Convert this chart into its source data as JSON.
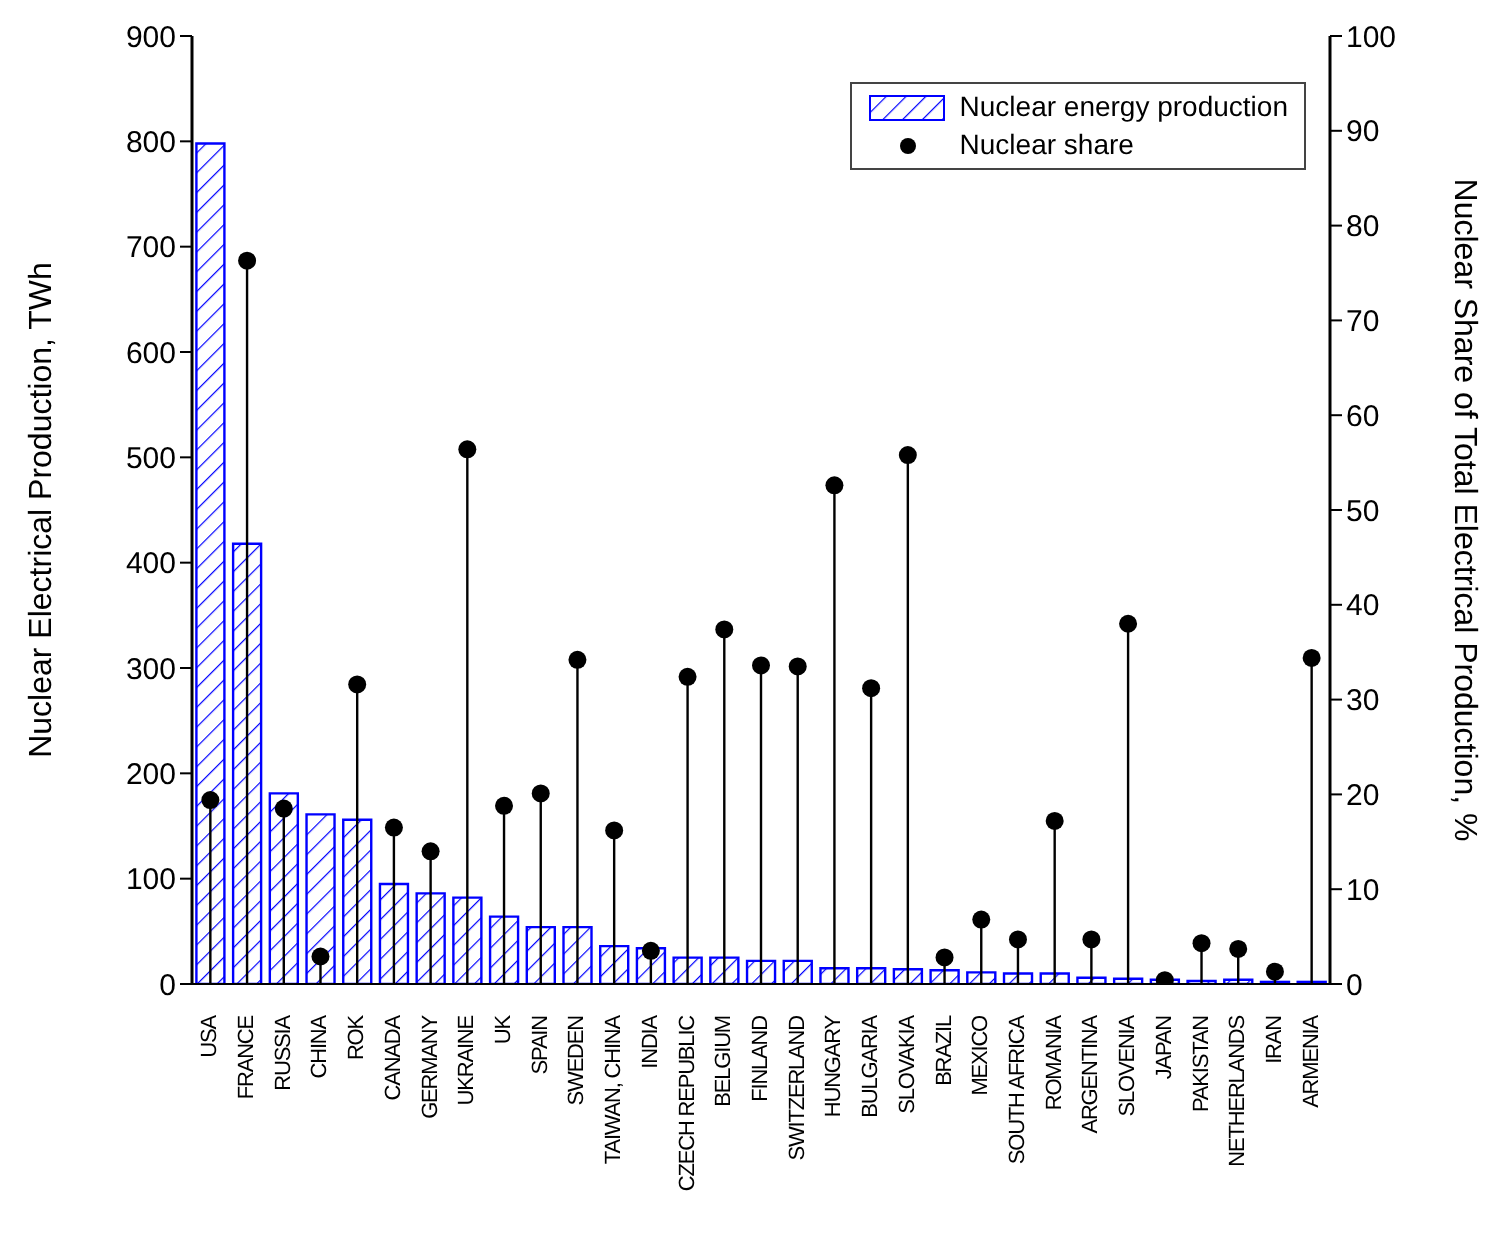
{
  "chart_data": {
    "type": "bar",
    "categories": [
      "USA",
      "FRANCE",
      "RUSSIA",
      "CHINA",
      "ROK",
      "CANADA",
      "GERMANY",
      "UKRAINE",
      "UK",
      "SPAIN",
      "SWEDEN",
      "TAIWAN, CHINA",
      "INDIA",
      "CZECH REPUBLIC",
      "BELGIUM",
      "FINLAND",
      "SWITZERLAND",
      "HUNGARY",
      "BULGARIA",
      "SLOVAKIA",
      "BRAZIL",
      "MEXICO",
      "SOUTH AFRICA",
      "ROMANIA",
      "ARGENTINA",
      "SLOVENIA",
      "JAPAN",
      "PAKISTAN",
      "NETHERLANDS",
      "IRAN",
      "ARMENIA"
    ],
    "series": [
      {
        "name": "Nuclear energy production",
        "color": "#0000ff",
        "values": [
          798,
          418,
          181,
          161,
          156,
          95,
          86,
          82,
          64,
          54,
          54,
          36,
          34,
          25,
          25,
          22,
          22,
          15,
          15,
          14,
          13,
          11,
          10,
          10,
          6,
          5,
          4,
          3,
          4,
          2,
          2
        ]
      },
      {
        "name": "Nuclear share",
        "type": "lollipop",
        "axis": "y2",
        "color": "#000000",
        "marker": "circle",
        "values": [
          19.4,
          76.3,
          18.5,
          2.9,
          31.6,
          16.5,
          14,
          56.4,
          18.8,
          20.1,
          34.2,
          16.2,
          3.5,
          32.4,
          37.4,
          33.6,
          33.5,
          52.6,
          31.2,
          55.8,
          2.8,
          6.8,
          4.7,
          17.2,
          4.7,
          38,
          0.4,
          4.3,
          3.7,
          1.3,
          34.4
        ]
      }
    ],
    "ylabel": "Nuclear Electrical Production, TWh",
    "y2label": "Nuclear Share of Total Electrical Production, %",
    "ylim": [
      0,
      900
    ],
    "yticks": [
      0,
      100,
      200,
      300,
      400,
      500,
      600,
      700,
      800,
      900
    ],
    "y2lim": [
      0,
      100
    ],
    "y2ticks": [
      0,
      10,
      20,
      30,
      40,
      50,
      60,
      70,
      80,
      90,
      100
    ],
    "legend": "top right"
  }
}
